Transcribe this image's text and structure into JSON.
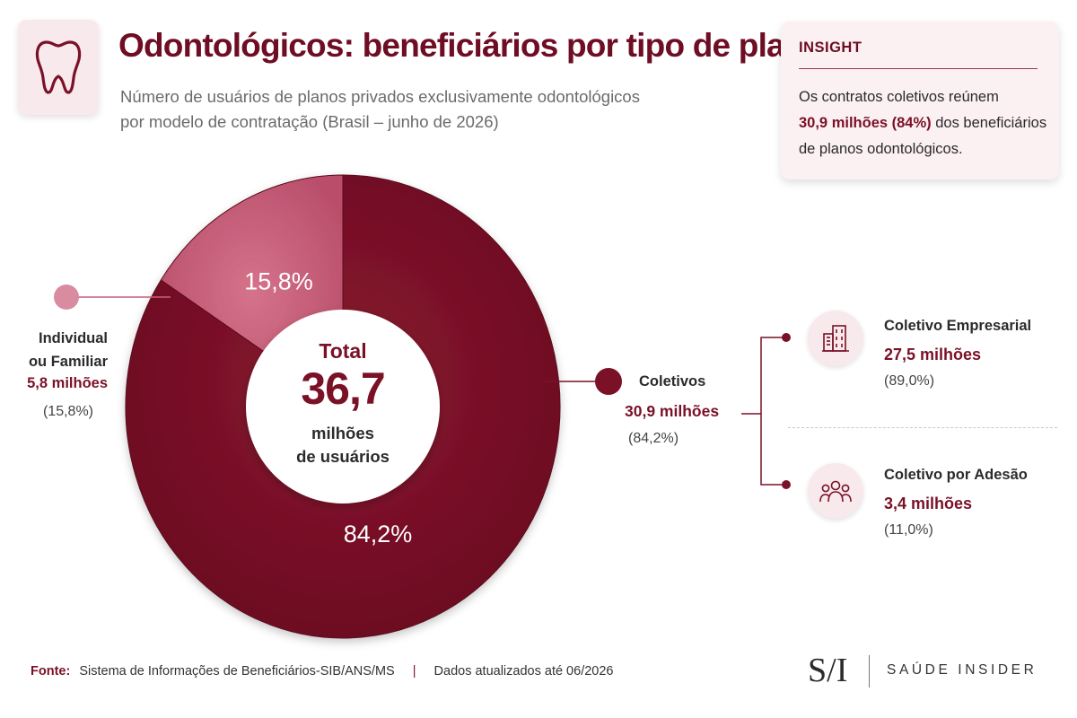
{
  "header": {
    "title": "Odontológicos: beneficiários por tipo de plano",
    "subtitle_line1": "Número de usuários de planos privados exclusivamente odontológicos",
    "subtitle_line2": "por modelo de contratação (Brasil – junho de 2026)",
    "icon": "tooth-icon"
  },
  "insight": {
    "heading": "INSIGHT",
    "text_before": "Os contratos coletivos reúnem",
    "highlight": "30,9 milhões (84%)",
    "text_after": " dos beneficiários de planos odontológicos."
  },
  "chart_data": {
    "type": "pie",
    "donut": true,
    "categories": [
      "Individual ou Familiar",
      "Coletivos"
    ],
    "values": [
      15.8,
      84.2
    ],
    "units": "%",
    "slice_labels": [
      "15,8%",
      "84,2%"
    ],
    "colors": [
      "#c75f79",
      "#7a1127"
    ],
    "center": {
      "total_label": "Total",
      "total_value": "36,7",
      "unit_line1": "milhões",
      "unit_line2": "de usuários"
    },
    "individual": {
      "name_line1": "Individual",
      "name_line2": "ou Familiar",
      "value": "5,8 milhões",
      "pct": "(15,8%)"
    },
    "coletivos": {
      "name": "Coletivos",
      "value": "30,9 milhões",
      "pct": "(84,2%)",
      "breakdown": [
        {
          "name": "Coletivo Empresarial",
          "value": "27,5 milhões",
          "pct": "(89,0%)",
          "icon": "building-icon"
        },
        {
          "name": "Coletivo por Adesão",
          "value": "3,4 milhões",
          "pct": "(11,0%)",
          "icon": "people-group-icon"
        }
      ]
    }
  },
  "footer": {
    "source_label": "Fonte:",
    "source": "Sistema de Informações de Beneficiários-SIB/ANS/MS",
    "separator": "|",
    "updated": "Dados atualizados até 06/2026"
  },
  "logo": {
    "mark": "S/I",
    "text": "SAÚDE INSIDER"
  }
}
